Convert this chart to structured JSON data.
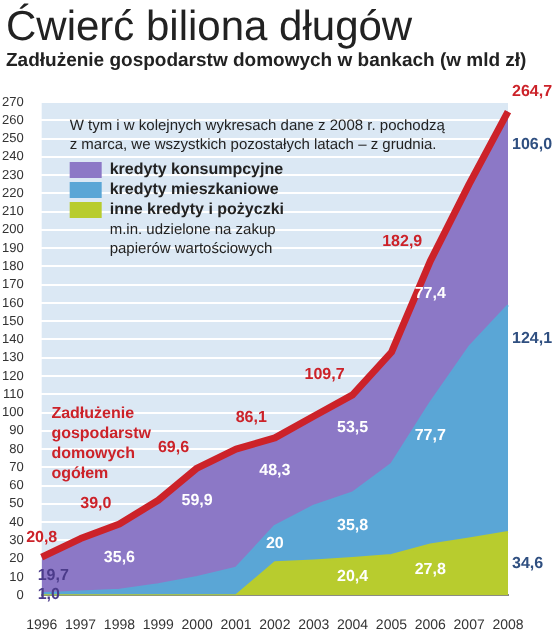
{
  "chart_data": {
    "type": "area",
    "title": "Ćwierć biliona długów",
    "subtitle": "Zadłużenie gospodarstw domowych w bankach (w mld zł)",
    "categories": [
      "1996",
      "1997",
      "1998",
      "1999",
      "2000",
      "2001",
      "2002",
      "2003",
      "2004",
      "2005",
      "2006",
      "2007",
      "2008"
    ],
    "stacked": true,
    "grid": "y",
    "legend": "top left",
    "ylim": [
      0,
      270
    ],
    "yticks": [
      0,
      10,
      20,
      30,
      40,
      50,
      60,
      70,
      80,
      90,
      100,
      110,
      120,
      130,
      140,
      150,
      160,
      170,
      180,
      190,
      200,
      210,
      220,
      230,
      240,
      250,
      260,
      270
    ],
    "annotations": [
      "W tym i w kolejnych wykresach dane z 2008 r. pochodzą z marca, we wszystkich pozostałych latach – z grudnia.",
      "m.in. udzielone na zakup papierów wartościowych"
    ],
    "series": [
      {
        "name": "inne kredyty i pożyczki",
        "color": "#b8cc2e",
        "values": [
          0,
          0,
          0,
          0,
          0,
          0,
          18,
          19,
          20.4,
          22,
          27.8,
          31,
          34.6
        ],
        "value_labels": [
          null,
          null,
          null,
          null,
          null,
          null,
          null,
          null,
          "20,4",
          null,
          "27,8",
          null,
          "34,6"
        ]
      },
      {
        "name": "kredyty mieszkaniowe",
        "color": "#5aa6d6",
        "values": [
          1.0,
          2,
          3,
          6,
          10,
          15,
          20,
          30,
          35.8,
          50,
          77.7,
          105,
          124.1
        ],
        "value_labels": [
          "1,0",
          null,
          null,
          null,
          null,
          null,
          "20",
          null,
          "35,8",
          null,
          "77,7",
          null,
          "124,1"
        ]
      },
      {
        "name": "kredyty konsumpcyjne",
        "color": "#8c78c6",
        "values": [
          19.7,
          29,
          35.6,
          46,
          59.9,
          65,
          48.3,
          49,
          53.5,
          61,
          77.4,
          89,
          106.0
        ],
        "value_labels": [
          "19,7",
          null,
          "35,6",
          null,
          "59,9",
          null,
          "48,3",
          null,
          "53,5",
          null,
          "77,4",
          null,
          "106,0"
        ]
      },
      {
        "name": "Zadłużenie gospodarstw domowych ogółem",
        "type": "line",
        "color": "#cc2229",
        "values": [
          20.8,
          31,
          39.0,
          52,
          69.6,
          80,
          86.1,
          98,
          109.7,
          133,
          182.9,
          225,
          264.7
        ],
        "value_labels": [
          "20,8",
          null,
          "39,0",
          null,
          "69,6",
          null,
          "86,1",
          null,
          "109,7",
          null,
          "182,9",
          null,
          "264,7"
        ]
      }
    ]
  }
}
